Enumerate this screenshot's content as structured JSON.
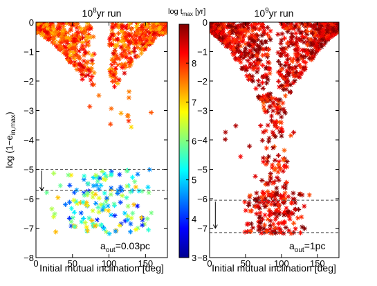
{
  "chart_data": [
    {
      "type": "scatter",
      "title_base": "10",
      "title_exp": "8",
      "title_suffix": "yr run",
      "xlabel": "Initial mutual inclination [deg]",
      "ylabel_main": "log (1−e",
      "ylabel_sub": "in,max",
      "ylabel_end": ")",
      "xlim": [
        0,
        180
      ],
      "ylim": [
        -8,
        0
      ],
      "xticks": [
        0,
        50,
        100,
        150
      ],
      "yticks": [
        0,
        -1,
        -2,
        -3,
        -4,
        -5,
        -6,
        -7,
        -8
      ],
      "ytick_labels": [
        "0",
        "−1",
        "−2",
        "−3",
        "−4",
        "−5",
        "−6",
        "−7",
        "−8"
      ],
      "hlines": [
        -5.0,
        -5.72
      ],
      "arrow": {
        "x": 8,
        "y_from": -5.0,
        "y_to": -5.72
      },
      "annotation_main": "a",
      "annotation_sub": "out",
      "annotation_end": "=0.03pc",
      "marker": "asterisk",
      "groups": [
        {
          "kind": "wing",
          "x_range": [
            0,
            80
          ],
          "y_range": [
            0,
            -2.2
          ],
          "count": 330,
          "color_value": 7.8
        },
        {
          "kind": "wing",
          "x_range": [
            100,
            180
          ],
          "y_range": [
            0,
            -2.2
          ],
          "count": 330,
          "color_value": 7.8
        },
        {
          "kind": "cluster",
          "x_range": [
            10,
            165
          ],
          "y_range": [
            -5.0,
            -7.2
          ],
          "count": 160,
          "color_value": 4.9
        },
        {
          "kind": "sparse",
          "x_range": [
            60,
            165
          ],
          "y_range": [
            -2.3,
            -3.6
          ],
          "count": 12,
          "color_value": 7.5
        }
      ]
    },
    {
      "type": "scatter",
      "title_base": "10",
      "title_exp": "9",
      "title_suffix": "yr run",
      "xlabel": "Initial mutual inclination [deg]",
      "xlim": [
        0,
        180
      ],
      "ylim": [
        -8,
        0
      ],
      "xticks": [
        0,
        50,
        100,
        150
      ],
      "yticks": [
        0,
        -1,
        -2,
        -3,
        -4,
        -5,
        -6,
        -7,
        -8
      ],
      "ytick_labels": [
        "0",
        "−1",
        "−2",
        "−3",
        "−4",
        "−5",
        "−6",
        "−7",
        "−8"
      ],
      "hlines": [
        -6.05,
        -7.15
      ],
      "arrow": {
        "x": 8,
        "y_from": -6.05,
        "y_to": -7.0
      },
      "annotation_main": "a",
      "annotation_sub": "out",
      "annotation_end": "=1pc",
      "marker": "asterisk",
      "groups": [
        {
          "kind": "wing",
          "x_range": [
            0,
            85
          ],
          "y_range": [
            0,
            -3.0
          ],
          "count": 380,
          "color_value": 8.5
        },
        {
          "kind": "wing",
          "x_range": [
            95,
            180
          ],
          "y_range": [
            0,
            -3.0
          ],
          "count": 380,
          "color_value": 8.5
        },
        {
          "kind": "stem",
          "x_range": [
            70,
            115
          ],
          "y_range": [
            -2.5,
            -6.0
          ],
          "count": 110,
          "color_value": 8.4
        },
        {
          "kind": "base",
          "x_range": [
            40,
            140
          ],
          "y_range": [
            -5.8,
            -7.2
          ],
          "count": 160,
          "color_value": 8.5
        },
        {
          "kind": "sparse",
          "x_range": [
            20,
            160
          ],
          "y_range": [
            -3.5,
            -5.5
          ],
          "count": 14,
          "color_value": 8.2
        }
      ]
    }
  ],
  "colorbar": {
    "title_main": "log t",
    "title_sub": "max",
    "title_end": " [yr]",
    "range": [
      3,
      9
    ],
    "ticks": [
      3,
      4,
      5,
      6,
      7,
      8
    ]
  }
}
